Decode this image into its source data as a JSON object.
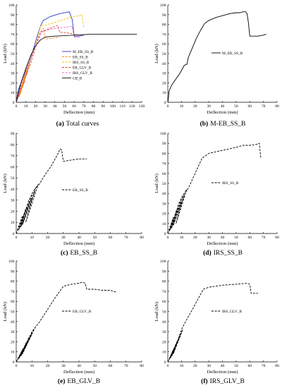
{
  "figure": {
    "panels": [
      {
        "id": "a",
        "caption_letter": "(a)",
        "caption_text": "Total curves"
      },
      {
        "id": "b",
        "caption_letter": "(b)",
        "caption_text": "M-EB_SS_B"
      },
      {
        "id": "c",
        "caption_letter": "(c)",
        "caption_text": "EB_SS_B"
      },
      {
        "id": "d",
        "caption_letter": "(d)",
        "caption_text": "IRS_SS_B"
      },
      {
        "id": "e",
        "caption_letter": "(e)",
        "caption_text": "EB_GLV_B"
      },
      {
        "id": "f",
        "caption_letter": "(f)",
        "caption_text": "IRS_GLV_B"
      }
    ]
  },
  "colors": {
    "M_EB_SS_B": "#2b35c8",
    "EB_SS_B": "#ff8c1a",
    "IRS_SS_B": "#f2c400",
    "EB_GLV_B": "#e8442e",
    "IRS_GLV_B": "#e86ad6",
    "CB_B": "#111111",
    "axis": "#000000",
    "line": "#000000"
  },
  "chart_data": [
    {
      "panel": "a",
      "type": "line",
      "xlabel": "Deflection (mm)",
      "ylabel": "Load (kN)",
      "xlim": [
        0,
        130
      ],
      "ylim": [
        0,
        100
      ],
      "xticks": [
        0,
        10,
        20,
        30,
        40,
        50,
        60,
        70,
        80,
        90,
        100,
        110,
        120,
        130
      ],
      "yticks": [
        0,
        10,
        20,
        30,
        40,
        50,
        60,
        70,
        80,
        90,
        100
      ],
      "legend_position": "center",
      "series": [
        {
          "name": "M_EB_SS_B",
          "style": "solid",
          "x": [
            0,
            2,
            5,
            10,
            15,
            20,
            25,
            28,
            35,
            45,
            55,
            58,
            60,
            65,
            70
          ],
          "y": [
            0,
            12,
            20,
            32,
            45,
            62,
            78,
            84,
            88,
            91,
            93,
            85,
            68,
            68,
            69
          ]
        },
        {
          "name": "EB_SS_B",
          "style": "dashed",
          "x": [
            0,
            5,
            10,
            15,
            20,
            25,
            28,
            30,
            38,
            45
          ],
          "y": [
            0,
            18,
            30,
            44,
            58,
            72,
            76,
            65,
            66,
            67
          ]
        },
        {
          "name": "IRS_SS_B",
          "style": "dashed",
          "x": [
            0,
            5,
            10,
            15,
            20,
            25,
            40,
            55,
            65,
            68,
            70
          ],
          "y": [
            0,
            15,
            30,
            45,
            58,
            78,
            82,
            87,
            89,
            90,
            77
          ]
        },
        {
          "name": "EB_GLV_B",
          "style": "dashed",
          "x": [
            0,
            5,
            10,
            15,
            20,
            25,
            35,
            43,
            45,
            55,
            65
          ],
          "y": [
            0,
            14,
            28,
            40,
            56,
            72,
            76,
            79,
            72,
            71,
            69
          ]
        },
        {
          "name": "IRS_GLV_B",
          "style": "dashed",
          "x": [
            0,
            3,
            8,
            13,
            20,
            26,
            35,
            50,
            58,
            60,
            66
          ],
          "y": [
            0,
            10,
            28,
            40,
            56,
            72,
            75,
            77,
            78,
            67,
            67
          ]
        },
        {
          "name": "CB_B",
          "style": "solid",
          "x": [
            0,
            5,
            10,
            15,
            20,
            25,
            30,
            40,
            60,
            80,
            100,
            125
          ],
          "y": [
            0,
            20,
            35,
            48,
            58,
            64,
            67,
            68,
            69,
            70,
            70,
            70
          ]
        }
      ],
      "extra_cycles": [
        {
          "color": "EB_GLV_B",
          "x": [
            0,
            5,
            9,
            2,
            1,
            7,
            12,
            3,
            2,
            10,
            15
          ],
          "y": [
            0,
            12,
            22,
            5,
            4,
            20,
            32,
            6,
            5,
            28,
            40
          ]
        },
        {
          "color": "IRS_GLV_B",
          "x": [
            0,
            4,
            8,
            3,
            2,
            7,
            11,
            4,
            3,
            10,
            13
          ],
          "y": [
            0,
            12,
            24,
            6,
            5,
            20,
            32,
            8,
            7,
            28,
            40
          ]
        },
        {
          "color": "IRS_SS_B",
          "x": [
            0,
            4,
            8,
            3,
            2,
            7,
            12,
            4,
            3,
            11,
            15
          ],
          "y": [
            0,
            12,
            24,
            6,
            5,
            22,
            34,
            8,
            7,
            32,
            44
          ]
        },
        {
          "color": "EB_SS_B",
          "x": [
            0,
            5,
            9,
            3,
            2,
            8,
            12,
            4,
            3,
            11,
            15
          ],
          "y": [
            0,
            14,
            26,
            6,
            5,
            24,
            36,
            8,
            7,
            32,
            44
          ]
        }
      ]
    },
    {
      "panel": "b",
      "type": "line",
      "xlabel": "Deflection (mm)",
      "ylabel": "Load (kN)",
      "xlim": [
        0,
        80
      ],
      "ylim": [
        0,
        100
      ],
      "xticks": [
        0,
        10,
        20,
        30,
        40,
        50,
        60,
        70,
        80
      ],
      "yticks": [
        0,
        10,
        20,
        30,
        40,
        50,
        60,
        70,
        80,
        90,
        100
      ],
      "legend_position": "center-right",
      "series": [
        {
          "name": "M_EB_SS_B",
          "style": "solid",
          "x": [
            0,
            0.5,
            1,
            3,
            6,
            9,
            12,
            14,
            15,
            18,
            21,
            24,
            27,
            30,
            35,
            40,
            45,
            50,
            53,
            55,
            57,
            58,
            59,
            60,
            62,
            66,
            70,
            72
          ],
          "y": [
            0,
            5,
            12,
            18,
            24,
            30,
            38,
            39,
            46,
            56,
            66,
            74,
            81,
            84,
            87,
            89,
            91,
            92,
            92,
            93,
            93,
            91,
            82,
            68,
            68,
            68,
            69,
            70
          ]
        }
      ]
    },
    {
      "panel": "c",
      "type": "line",
      "xlabel": "Deflection (mm)",
      "ylabel": "Load (kN)",
      "xlim": [
        0,
        80
      ],
      "ylim": [
        0,
        90
      ],
      "xticks": [
        0,
        10,
        20,
        30,
        40,
        50,
        60,
        70,
        80
      ],
      "yticks": [
        0,
        10,
        20,
        30,
        40,
        50,
        60,
        70,
        80,
        90
      ],
      "legend_position": "center",
      "series": [
        {
          "name": "EB_SS_B",
          "style": "dashed",
          "x": [
            0,
            2,
            4,
            1,
            1,
            4,
            7,
            2,
            2,
            6,
            10,
            3,
            3,
            8,
            12,
            4,
            4,
            10,
            14,
            6,
            6,
            12,
            15,
            18,
            22,
            26,
            28,
            29,
            30,
            31,
            35,
            40,
            45
          ],
          "y": [
            0,
            8,
            16,
            2,
            2,
            14,
            24,
            4,
            4,
            22,
            32,
            6,
            6,
            30,
            38,
            8,
            8,
            36,
            44,
            10,
            10,
            40,
            45,
            52,
            60,
            70,
            76,
            75,
            65,
            65,
            66,
            67,
            67
          ]
        }
      ]
    },
    {
      "panel": "d",
      "type": "line",
      "xlabel": "Deflection (mm)",
      "ylabel": "Load (kN)",
      "xlim": [
        0,
        80
      ],
      "ylim": [
        0,
        100
      ],
      "xticks": [
        0,
        10,
        20,
        30,
        40,
        50,
        60,
        70,
        80
      ],
      "yticks": [
        0,
        10,
        20,
        30,
        40,
        50,
        60,
        70,
        80,
        90,
        100
      ],
      "legend_position": "center",
      "series": [
        {
          "name": "IRS_SS_B",
          "style": "dashed",
          "x": [
            0,
            2,
            4,
            1,
            1,
            4,
            7,
            2,
            2,
            6,
            10,
            3,
            3,
            8,
            12,
            4,
            4,
            10,
            14,
            6,
            6,
            12,
            15,
            20,
            25,
            30,
            40,
            50,
            55,
            60,
            65,
            67,
            68,
            69
          ],
          "y": [
            0,
            8,
            16,
            2,
            2,
            14,
            24,
            4,
            4,
            22,
            32,
            6,
            6,
            30,
            38,
            8,
            8,
            36,
            44,
            10,
            10,
            40,
            45,
            60,
            75,
            80,
            83,
            86,
            88,
            88,
            89,
            90,
            76,
            76
          ]
        }
      ]
    },
    {
      "panel": "e",
      "type": "line",
      "xlabel": "Deflection (mm)",
      "ylabel": "Load (kN)",
      "xlim": [
        0,
        80
      ],
      "ylim": [
        0,
        100
      ],
      "xticks": [
        0,
        10,
        20,
        30,
        40,
        50,
        60,
        70,
        80
      ],
      "yticks": [
        0,
        10,
        20,
        30,
        40,
        50,
        60,
        70,
        80,
        90,
        100
      ],
      "legend_position": "center",
      "series": [
        {
          "name": "EB_GLV_B",
          "style": "dashed",
          "x": [
            0,
            2,
            4,
            1,
            1,
            4,
            7,
            2,
            2,
            6,
            10,
            3,
            3,
            8,
            12,
            4,
            4,
            10,
            15,
            20,
            25,
            30,
            35,
            40,
            42,
            44,
            45,
            50,
            55,
            60,
            64
          ],
          "y": [
            0,
            6,
            12,
            2,
            2,
            12,
            20,
            4,
            4,
            18,
            28,
            6,
            6,
            24,
            34,
            8,
            8,
            30,
            40,
            52,
            64,
            75,
            77,
            78,
            79,
            78,
            72,
            72,
            71,
            71,
            69
          ]
        }
      ]
    },
    {
      "panel": "f",
      "type": "line",
      "xlabel": "Deflection (mm)",
      "ylabel": "Load (kN)",
      "xlim": [
        0,
        80
      ],
      "ylim": [
        0,
        100
      ],
      "xticks": [
        0,
        10,
        20,
        30,
        40,
        50,
        60,
        70,
        80
      ],
      "yticks": [
        0,
        10,
        20,
        30,
        40,
        50,
        60,
        70,
        80,
        90,
        100
      ],
      "legend_position": "center",
      "series": [
        {
          "name": "IRS_GLV_B",
          "style": "dashed",
          "x": [
            0,
            2,
            4,
            1,
            1,
            4,
            7,
            2,
            2,
            6,
            9,
            3,
            3,
            8,
            11,
            4,
            4,
            10,
            13,
            18,
            22,
            26,
            30,
            40,
            50,
            58,
            60,
            61,
            62,
            66
          ],
          "y": [
            0,
            6,
            12,
            2,
            2,
            12,
            20,
            4,
            4,
            18,
            26,
            6,
            6,
            24,
            32,
            8,
            8,
            32,
            40,
            52,
            62,
            72,
            74,
            76,
            77,
            78,
            77,
            68,
            68,
            68
          ]
        }
      ]
    }
  ]
}
